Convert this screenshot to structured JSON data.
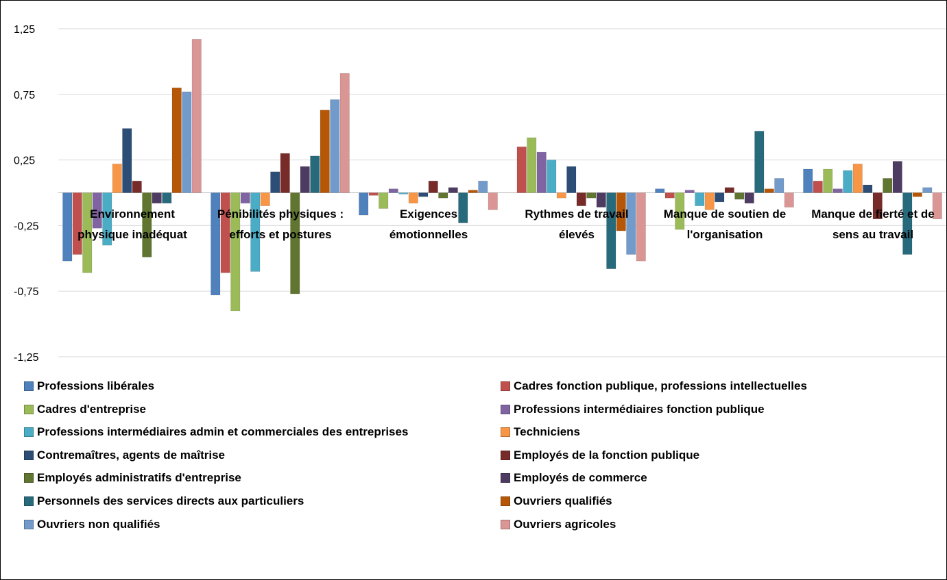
{
  "chart_data": {
    "type": "bar",
    "categories": [
      "Environnement physique inadéquat",
      "Pénibilités physiques : efforts et postures",
      "Exigences émotionnelles",
      "Rythmes de travail élevés",
      "Manque de soutien de l'organisation",
      "Manque de fierté et de sens au travail"
    ],
    "series": [
      {
        "name": "Professions libérales",
        "color": "#4f81bd",
        "values": [
          -0.52,
          -0.78,
          -0.17,
          0.0,
          0.03,
          0.18
        ]
      },
      {
        "name": "Cadres fonction publique, professions intellectuelles",
        "color": "#c0504d",
        "values": [
          -0.47,
          -0.61,
          -0.02,
          0.35,
          -0.04,
          0.09
        ]
      },
      {
        "name": "Cadres d'entreprise",
        "color": "#9bbb59",
        "values": [
          -0.61,
          -0.9,
          -0.12,
          0.42,
          -0.28,
          0.18
        ]
      },
      {
        "name": "Professions intermédiaires fonction publique",
        "color": "#8064a2",
        "values": [
          -0.27,
          -0.08,
          0.03,
          0.31,
          0.02,
          0.03
        ]
      },
      {
        "name": "Professions intermédiaires admin et commerciales des entreprises",
        "color": "#4bacc6",
        "values": [
          -0.4,
          -0.6,
          -0.01,
          0.25,
          -0.1,
          0.17
        ]
      },
      {
        "name": "Techniciens",
        "color": "#f79646",
        "values": [
          0.22,
          -0.1,
          -0.08,
          -0.04,
          -0.13,
          0.22
        ]
      },
      {
        "name": "Contremaîtres, agents de maîtrise",
        "color": "#2c4d75",
        "values": [
          0.49,
          0.16,
          -0.03,
          0.2,
          -0.07,
          0.06
        ]
      },
      {
        "name": "Employés de la fonction publique",
        "color": "#772c2a",
        "values": [
          0.09,
          0.3,
          0.09,
          -0.1,
          0.04,
          -0.2
        ]
      },
      {
        "name": "Employés administratifs d'entreprise",
        "color": "#5f7530",
        "values": [
          -0.49,
          -0.77,
          -0.04,
          -0.04,
          -0.05,
          0.11
        ]
      },
      {
        "name": "Employés de commerce",
        "color": "#4d3b62",
        "values": [
          -0.08,
          0.2,
          0.04,
          -0.11,
          -0.08,
          0.24
        ]
      },
      {
        "name": "Personnels des services directs aux particuliers",
        "color": "#276a7c",
        "values": [
          -0.08,
          0.28,
          -0.23,
          -0.58,
          0.47,
          -0.47
        ]
      },
      {
        "name": "Ouvriers qualifiés",
        "color": "#b65708",
        "values": [
          0.8,
          0.63,
          0.02,
          -0.29,
          0.03,
          -0.03
        ]
      },
      {
        "name": "Ouvriers non qualifiés",
        "color": "#729aca",
        "values": [
          0.77,
          0.71,
          0.09,
          -0.47,
          0.11,
          0.04
        ]
      },
      {
        "name": "Ouvriers agricoles",
        "color": "#d99694",
        "values": [
          1.17,
          0.91,
          -0.13,
          -0.52,
          -0.11,
          -0.2
        ]
      }
    ],
    "ylim": [
      -1.25,
      1.25
    ],
    "yticks": [
      {
        "value": -1.25,
        "label": "-1,25"
      },
      {
        "value": -0.75,
        "label": "-0,75"
      },
      {
        "value": -0.25,
        "label": "-0,25"
      },
      {
        "value": 0.25,
        "label": "0,25"
      },
      {
        "value": 0.75,
        "label": "0,75"
      },
      {
        "value": 1.25,
        "label": "1,25"
      }
    ],
    "grid": true,
    "legend": "bottom"
  }
}
